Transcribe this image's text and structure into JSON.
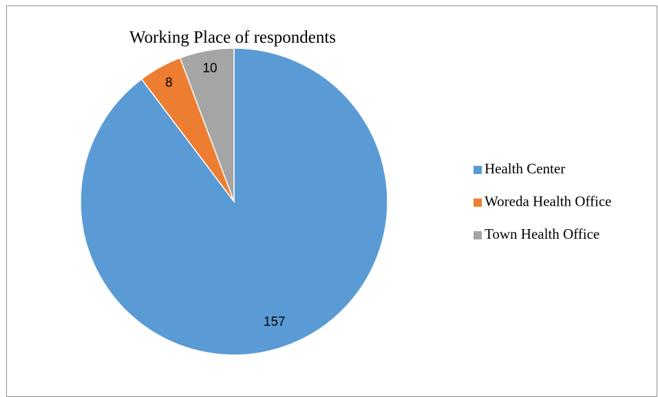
{
  "chart_data": {
    "type": "pie",
    "title": "Working Place of respondents",
    "categories": [
      "Health Center",
      "Woreda Health Office",
      "Town Health Office"
    ],
    "values": [
      157,
      8,
      10
    ],
    "colors": [
      "#5b9bd5",
      "#ed7d31",
      "#a5a5a5"
    ],
    "legend": "right"
  }
}
